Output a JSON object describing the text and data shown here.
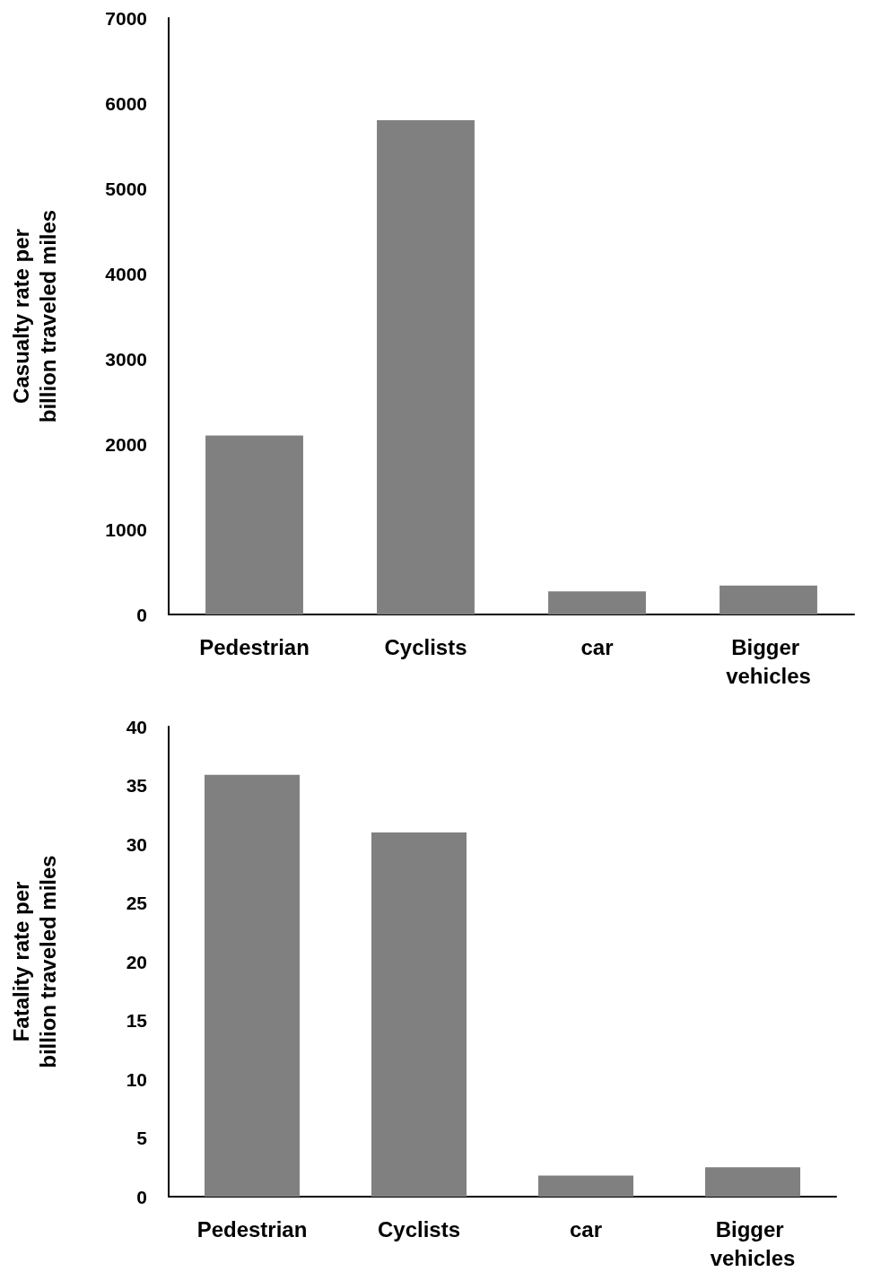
{
  "chart_data": [
    {
      "type": "bar",
      "ylabel": "Casualty rate per billion traveled miles",
      "categories": [
        "Pedestrian",
        "Cyclists",
        "car",
        "Bigger vehicles"
      ],
      "values": [
        2100,
        5800,
        270,
        340
      ],
      "color": "#808080",
      "ylim": [
        0,
        7000
      ],
      "yticks": [
        0,
        1000,
        2000,
        3000,
        4000,
        5000,
        6000,
        7000
      ]
    },
    {
      "type": "bar",
      "ylabel": "Fatality rate per billion traveled miles",
      "categories": [
        "Pedestrian",
        "Cyclists",
        "car",
        "Bigger vehicles"
      ],
      "values": [
        35.9,
        31,
        1.8,
        2.5
      ],
      "color": "#808080",
      "ylim": [
        0,
        40
      ],
      "yticks": [
        0,
        5,
        10,
        15,
        20,
        25,
        30,
        35,
        40
      ]
    }
  ]
}
